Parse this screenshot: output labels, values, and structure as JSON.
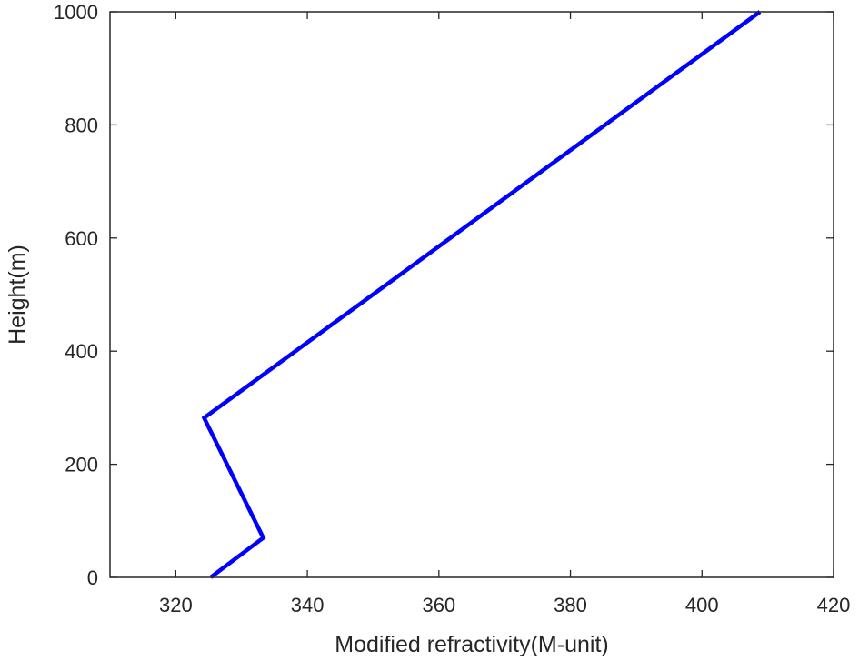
{
  "chart_data": {
    "type": "line",
    "title": "",
    "xlabel": "Modified refractivity(M-unit)",
    "ylabel": "Height(m)",
    "xlim": [
      310,
      420
    ],
    "ylim": [
      0,
      1000
    ],
    "xticks": [
      320,
      340,
      360,
      380,
      400,
      420
    ],
    "yticks": [
      0,
      200,
      400,
      600,
      800,
      1000
    ],
    "grid": false,
    "legend": "none",
    "series": [
      {
        "color": "#0000ff",
        "x": [
          325.3,
          333.3,
          324.3,
          408.8
        ],
        "y": [
          0,
          70,
          282,
          1000
        ]
      }
    ]
  }
}
